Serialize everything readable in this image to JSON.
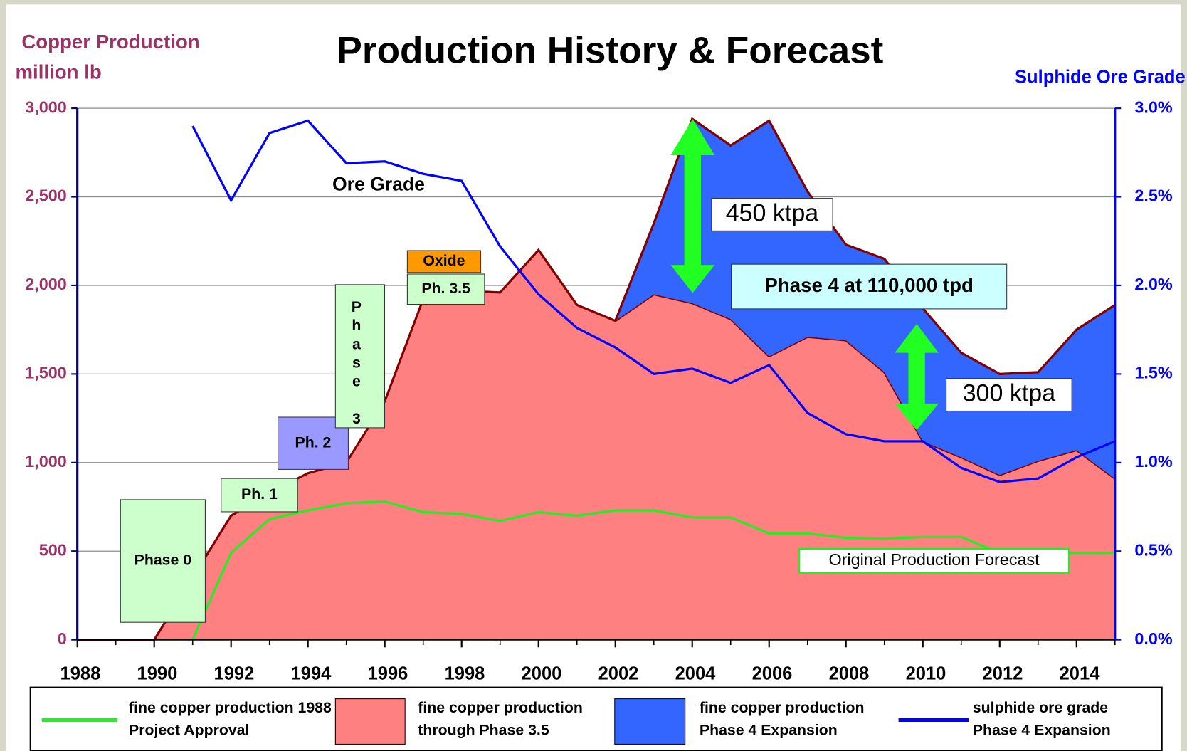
{
  "chart_data": {
    "type": "stacked_area_line",
    "title": "Production History & Forecast",
    "ylabel": [
      "Copper Production",
      "million lb"
    ],
    "y2label": "Sulphide Ore Grade",
    "x": [
      1988,
      1989,
      1990,
      1991,
      1992,
      1993,
      1994,
      1995,
      1996,
      1997,
      1998,
      1999,
      2000,
      2001,
      2002,
      2003,
      2004,
      2005,
      2006,
      2007,
      2008,
      2009,
      2010,
      2011,
      2012,
      2013,
      2014,
      2015
    ],
    "xlim": [
      1988,
      2015
    ],
    "xticks": [
      1988,
      1990,
      1992,
      1994,
      1996,
      1998,
      2000,
      2002,
      2004,
      2006,
      2008,
      2010,
      2012,
      2014
    ],
    "ylim": [
      0,
      3000
    ],
    "yticks": [
      0,
      {
        "value": 500,
        "label": "500"
      },
      {
        "value": 1000,
        "label": "1,000"
      },
      {
        "value": 1500,
        "label": "1,500"
      },
      {
        "value": 2000,
        "label": "2,000"
      },
      {
        "value": 2500,
        "label": "2,500"
      },
      {
        "value": 3000,
        "label": "3,000"
      }
    ],
    "y2lim": [
      0,
      3
    ],
    "y2ticks": [
      {
        "value": 0,
        "label": "0.0%"
      },
      {
        "value": 0.5,
        "label": "0.5%"
      },
      {
        "value": 1,
        "label": "1.0%"
      },
      {
        "value": 1.5,
        "label": "1.5%"
      },
      {
        "value": 2,
        "label": "2.0%"
      },
      {
        "value": 2.5,
        "label": "2.5%"
      },
      {
        "value": 3,
        "label": "3.0%"
      }
    ],
    "grid": true,
    "series": [
      {
        "name": "fine copper production 1988 Project Approval",
        "kind": "line",
        "color": "#22ee22",
        "values": [
          null,
          null,
          null,
          0,
          490,
          680,
          730,
          770,
          780,
          720,
          710,
          670,
          720,
          700,
          730,
          730,
          690,
          690,
          600,
          600,
          575,
          570,
          580,
          580,
          490,
          490,
          490,
          490
        ]
      },
      {
        "name": "fine copper production through Phase 3.5",
        "kind": "area",
        "color": "#ff8080",
        "values": [
          0,
          0,
          0,
          350,
          700,
          830,
          940,
          1000,
          1346,
          1923,
          1970,
          1960,
          2200,
          1890,
          1800,
          1950,
          1900,
          1810,
          1600,
          1710,
          1690,
          1510,
          1120,
          1030,
          930,
          1010,
          1070,
          910
        ]
      },
      {
        "name": "fine copper production Phase 4 Expansion",
        "kind": "stacked_area",
        "color": "#3366ff",
        "values": [
          null,
          null,
          null,
          null,
          null,
          null,
          null,
          null,
          null,
          null,
          null,
          null,
          null,
          null,
          0,
          400,
          1040,
          980,
          1330,
          820,
          540,
          640,
          750,
          590,
          570,
          500,
          680,
          980
        ]
      },
      {
        "name": "sulphide ore grade Phase 4 Expansion",
        "kind": "line",
        "axis": "y2",
        "color": "#0000ff",
        "values": [
          null,
          null,
          null,
          2.9,
          2.48,
          2.86,
          2.93,
          2.69,
          2.7,
          2.63,
          2.59,
          2.22,
          1.95,
          1.76,
          1.65,
          1.5,
          1.53,
          1.45,
          1.55,
          1.28,
          1.16,
          1.12,
          1.12,
          0.97,
          0.89,
          0.91,
          1.03,
          1.12
        ]
      }
    ],
    "annotations": [
      "Ore Grade",
      "Oxide",
      "Ph. 3.5",
      "Phase 0",
      "Ph. 1",
      "Ph. 2",
      "Phase 3",
      "450 ktpa",
      "Phase 4 at 110,000 tpd",
      "300 ktpa",
      "Original Production Forecast"
    ]
  }
}
